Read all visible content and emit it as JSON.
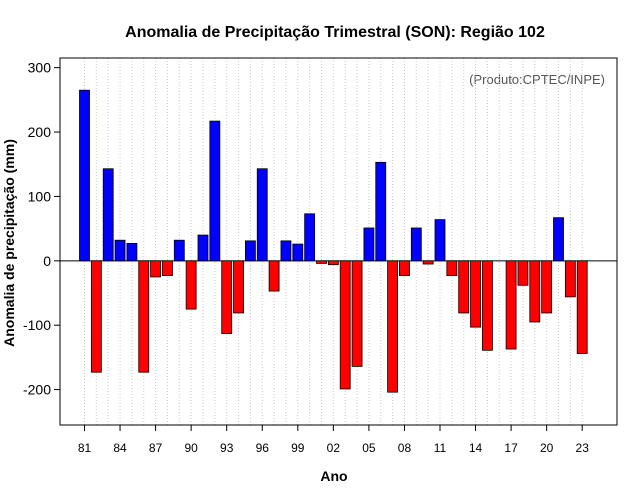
{
  "chart_data": {
    "type": "bar",
    "title": "Anomalia de Precipitação Trimestral (SON): Região 102",
    "xlabel": "Ano",
    "ylabel": "Anomalia de precipitação (mm)",
    "annotation": "(Produto:CPTEC/INPE)",
    "ylim": [
      -255,
      315
    ],
    "y_ticks": [
      -200,
      -100,
      0,
      100,
      200,
      300
    ],
    "x_tick_labels": [
      "81",
      "84",
      "87",
      "90",
      "93",
      "96",
      "99",
      "02",
      "05",
      "08",
      "11",
      "14",
      "17",
      "20",
      "23"
    ],
    "x_tick_years": [
      1981,
      1984,
      1987,
      1990,
      1993,
      1996,
      1999,
      2002,
      2005,
      2008,
      2011,
      2014,
      2017,
      2020,
      2023
    ],
    "years": [
      1981,
      1982,
      1983,
      1984,
      1985,
      1986,
      1987,
      1988,
      1989,
      1990,
      1991,
      1992,
      1993,
      1994,
      1995,
      1996,
      1997,
      1998,
      1999,
      2000,
      2001,
      2002,
      2003,
      2004,
      2005,
      2006,
      2007,
      2008,
      2009,
      2010,
      2011,
      2012,
      2013,
      2014,
      2015,
      2016,
      2017,
      2018,
      2019,
      2020,
      2021,
      2022,
      2023
    ],
    "values": [
      265,
      -173,
      143,
      32,
      27,
      -173,
      -25,
      -23,
      32,
      -75,
      40,
      217,
      -113,
      -81,
      31,
      143,
      -47,
      31,
      26,
      73,
      -4,
      -6,
      -199,
      -164,
      51,
      153,
      -204,
      -23,
      51,
      -5,
      64,
      -23,
      -81,
      -103,
      -139,
      0,
      -137,
      -38,
      -95,
      -81,
      67,
      -56,
      -144
    ],
    "colors": {
      "positive": "#0000ff",
      "negative": "#ff0000",
      "grid": "#c8c8d0",
      "zero_line": "#000000"
    }
  }
}
